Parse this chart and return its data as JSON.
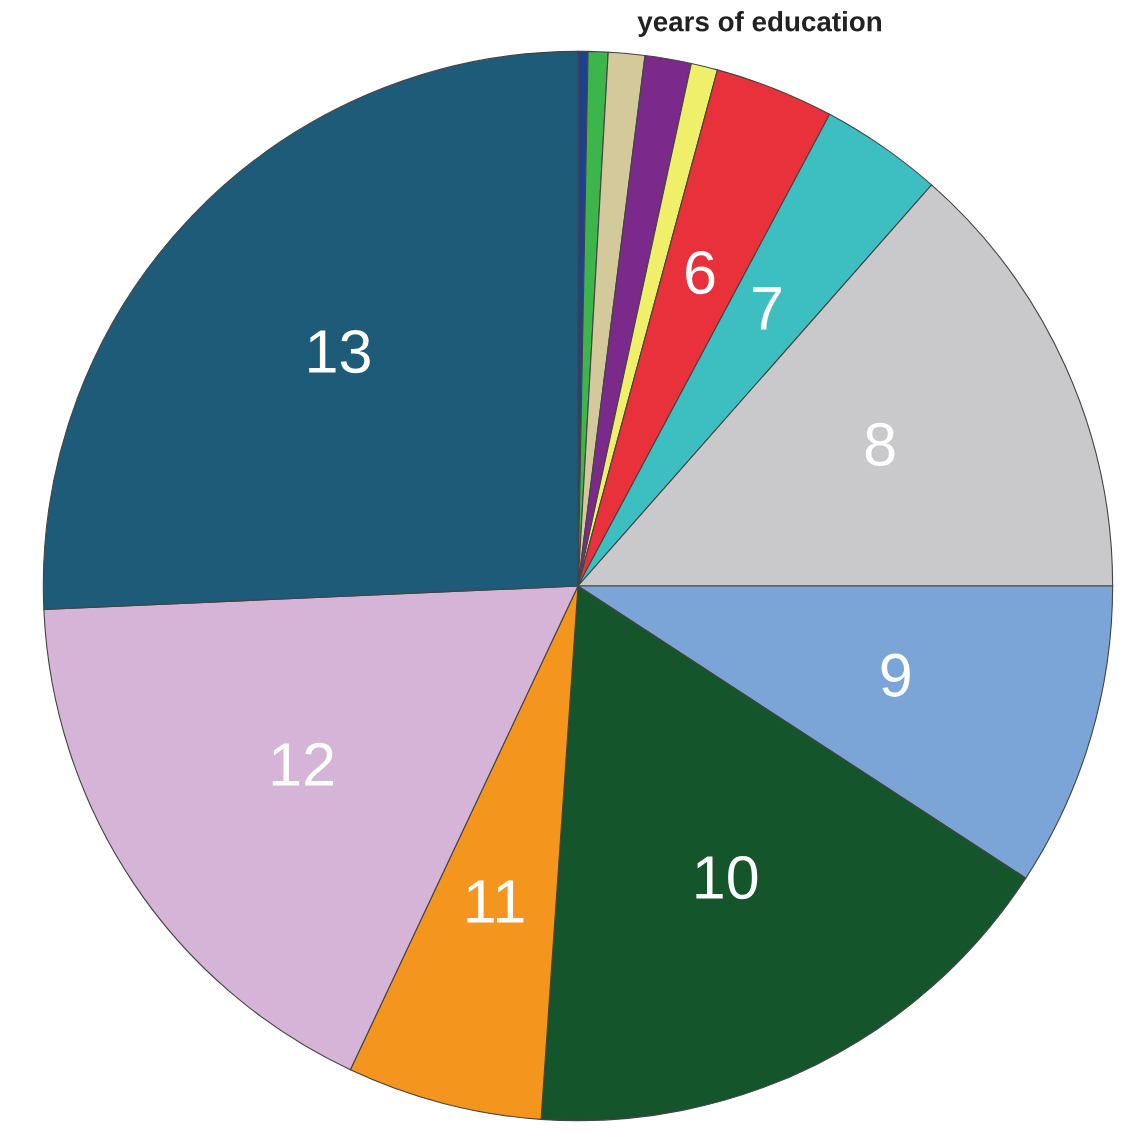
{
  "chart_data": {
    "type": "pie",
    "title": "years of education",
    "categories": [
      null,
      null,
      null,
      null,
      null,
      "6",
      "7",
      "8",
      "9",
      "10",
      "11",
      "12",
      "13"
    ],
    "values": [
      0.3,
      0.6,
      1.1,
      1.4,
      0.8,
      3.6,
      3.7,
      13.5,
      9.2,
      16.9,
      5.9,
      17.3,
      25.7
    ],
    "colors": [
      "#1f3f8f",
      "#3cb54a",
      "#d4c99a",
      "#7b2a8c",
      "#f0ef6a",
      "#e8313a",
      "#3dbfc1",
      "#c9c9cc",
      "#7aa5d6",
      "#14552c",
      "#f4951d",
      "#d5b4d8",
      "#1d5b78"
    ],
    "legend": false
  }
}
